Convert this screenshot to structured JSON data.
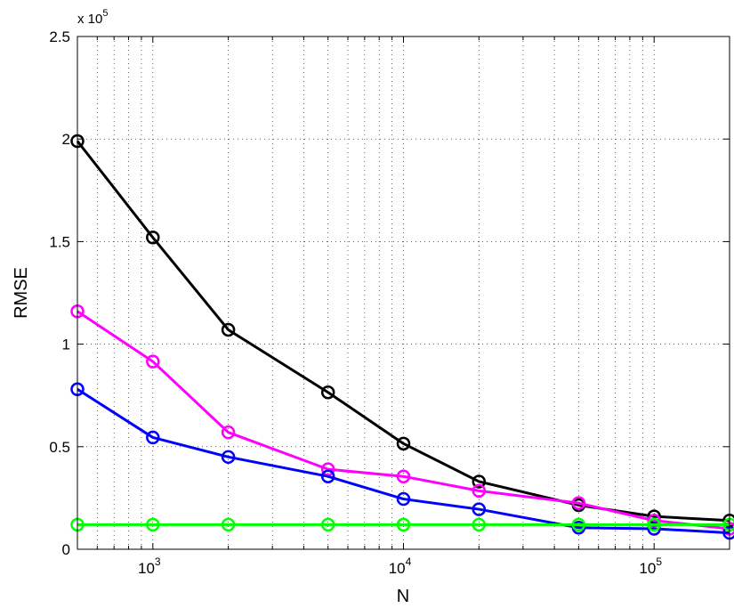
{
  "chart_data": {
    "type": "line",
    "x_scale": "log",
    "x": [
      500,
      1000,
      2000,
      5000,
      10000,
      20000,
      50000,
      100000,
      200000
    ],
    "xlim": [
      500,
      200000
    ],
    "ylim": [
      0,
      2.5
    ],
    "xlabel": "N",
    "ylabel": "RMSE",
    "y_multiplier": {
      "base": "x 10",
      "exp": "5"
    },
    "grid": true,
    "marker": "circle",
    "x_ticks": [
      {
        "value": 1000,
        "base": "10",
        "exp": "3"
      },
      {
        "value": 10000,
        "base": "10",
        "exp": "4"
      },
      {
        "value": 100000,
        "base": "10",
        "exp": "5"
      }
    ],
    "y_ticks": [
      {
        "value": 0,
        "label": "0"
      },
      {
        "value": 0.5,
        "label": "0.5"
      },
      {
        "value": 1,
        "label": "1"
      },
      {
        "value": 1.5,
        "label": "1.5"
      },
      {
        "value": 2,
        "label": "2"
      },
      {
        "value": 2.5,
        "label": "2.5"
      }
    ],
    "series": [
      {
        "color": "#000000",
        "values": [
          1.99,
          1.52,
          1.07,
          0.765,
          0.515,
          0.33,
          0.215,
          0.16,
          0.14
        ]
      },
      {
        "color": "#ff00ff",
        "values": [
          1.16,
          0.915,
          0.57,
          0.39,
          0.355,
          0.285,
          0.225,
          0.14,
          0.1
        ]
      },
      {
        "color": "#0000ff",
        "values": [
          0.78,
          0.545,
          0.45,
          0.355,
          0.245,
          0.195,
          0.105,
          0.1,
          0.08
        ]
      },
      {
        "color": "#00ff00",
        "values": [
          0.12,
          0.12,
          0.12,
          0.12,
          0.12,
          0.12,
          0.12,
          0.12,
          0.12
        ]
      }
    ]
  }
}
